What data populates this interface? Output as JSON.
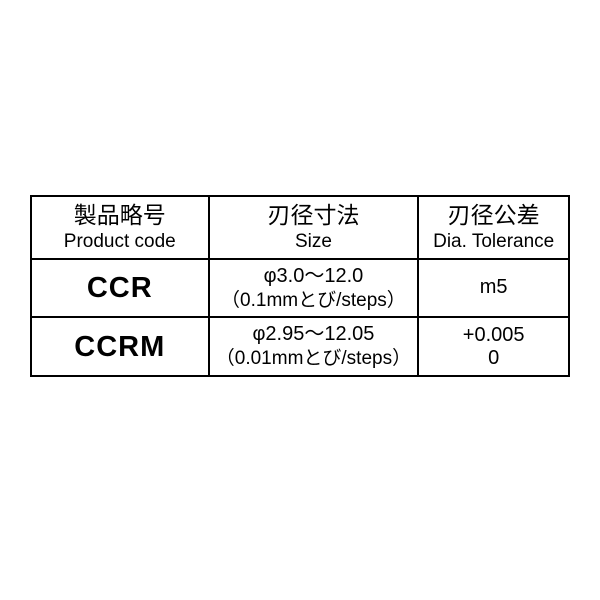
{
  "table": {
    "border_color": "#000000",
    "background_color": "#ffffff",
    "columns": [
      {
        "jp": "製品略号",
        "en": "Product code",
        "width_pct": 33
      },
      {
        "jp": "刃径寸法",
        "en": "Size",
        "width_pct": 39
      },
      {
        "jp": "刃径公差",
        "en": "Dia. Tolerance",
        "width_pct": 28
      }
    ],
    "rows": [
      {
        "code": "CCR",
        "size_line1": "φ3.0～12.0",
        "size_line2": "（0.1mmとび/steps）",
        "tol_line1": "m5",
        "tol_line2": ""
      },
      {
        "code": "CCRM",
        "size_line1": "φ2.95～12.05",
        "size_line2": "（0.01mmとび/steps）",
        "tol_line1": "+0.005",
        "tol_line2": "0"
      }
    ],
    "header_jp_fontsize": 23,
    "header_en_fontsize": 19,
    "code_fontsize": 29,
    "body_fontsize": 20
  }
}
